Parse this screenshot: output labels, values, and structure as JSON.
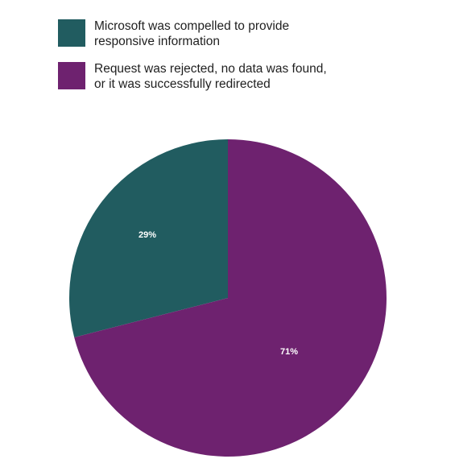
{
  "chart_data": {
    "type": "pie",
    "title": "",
    "slices": [
      {
        "label": "Microsoft was compelled to provide\nresponsive information",
        "value": 29,
        "display": "29%",
        "color": "#215c60"
      },
      {
        "label": "Request was rejected, no data was found,\nor it was successfully redirected",
        "value": 71,
        "display": "71%",
        "color": "#6e226f"
      }
    ],
    "legend_placement": "top-left"
  }
}
